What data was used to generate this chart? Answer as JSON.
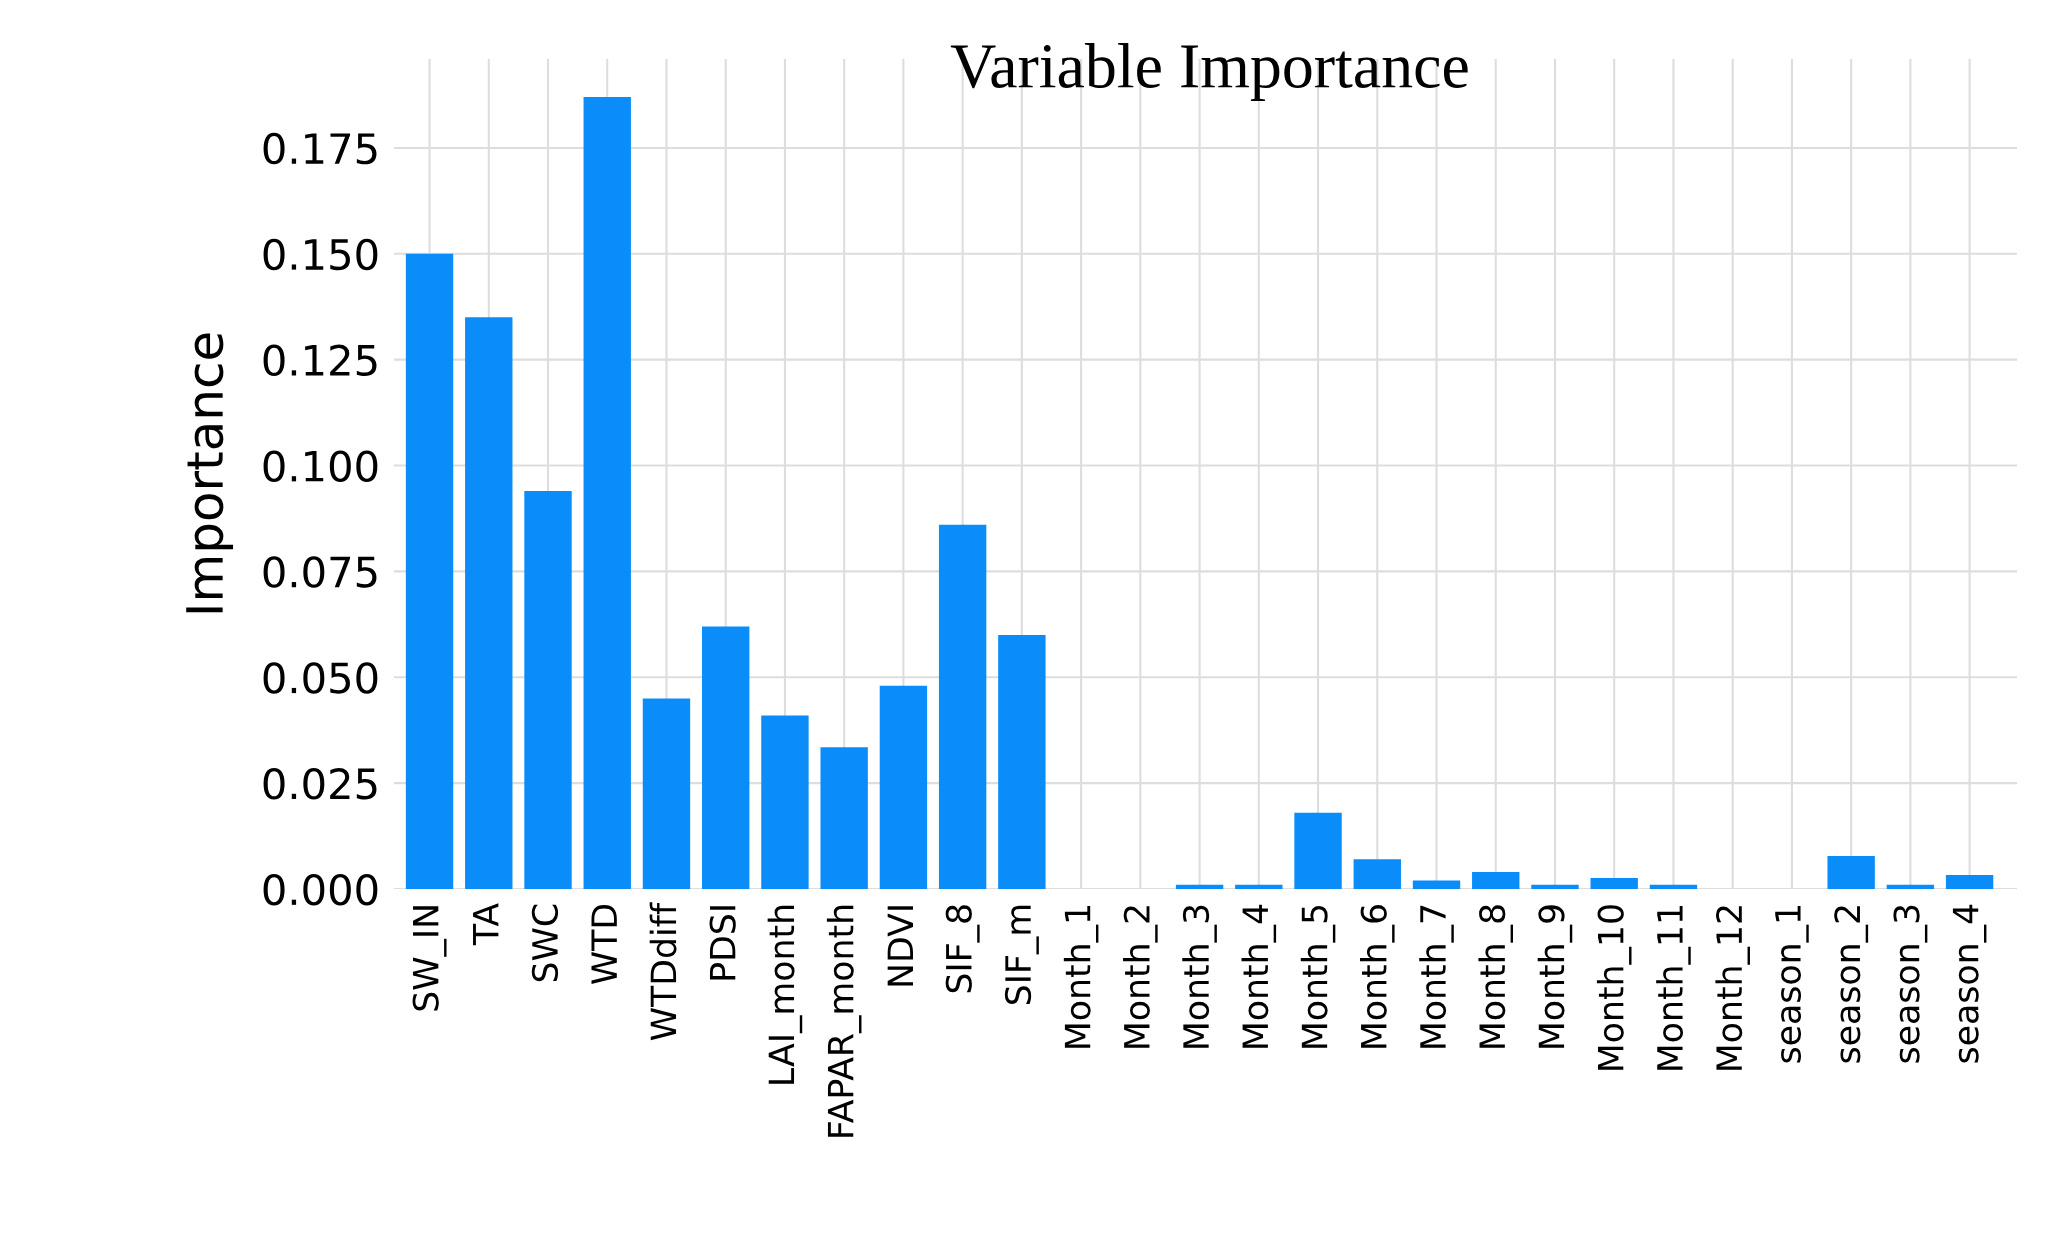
{
  "chart_data": {
    "type": "bar",
    "title": "Variable Importance",
    "ylabel": "Importance",
    "categories": [
      "SW_IN",
      "TA",
      "SWC",
      "WTD",
      "WTDdiff",
      "PDSI",
      "LAI_month",
      "FAPAR_month",
      "NDVI",
      "SIF_8",
      "SIF_m",
      "Month_1",
      "Month_2",
      "Month_3",
      "Month_4",
      "Month_5",
      "Month_6",
      "Month_7",
      "Month_8",
      "Month_9",
      "Month_10",
      "Month_11",
      "Month_12",
      "season_1",
      "season_2",
      "season_3",
      "season_4"
    ],
    "values": [
      0.15,
      0.135,
      0.094,
      0.187,
      0.045,
      0.062,
      0.041,
      0.0335,
      0.048,
      0.086,
      0.06,
      0,
      0,
      0.001,
      0.001,
      0.018,
      0.007,
      0.002,
      0.004,
      0.001,
      0.0026,
      0.001,
      0,
      0,
      0.0078,
      0.001,
      0.0033
    ],
    "color": "#0a8df8",
    "ylim": [
      0,
      0.196
    ],
    "yticks": [
      {
        "value": 0,
        "label": "0.000"
      },
      {
        "value": 0.025,
        "label": "0.025"
      },
      {
        "value": 0.05,
        "label": "0.050"
      },
      {
        "value": 0.075,
        "label": "0.075"
      },
      {
        "value": 0.1,
        "label": "0.100"
      },
      {
        "value": 0.125,
        "label": "0.125"
      },
      {
        "value": 0.15,
        "label": "0.150"
      },
      {
        "value": 0.175,
        "label": "0.175"
      }
    ],
    "grid": true
  }
}
